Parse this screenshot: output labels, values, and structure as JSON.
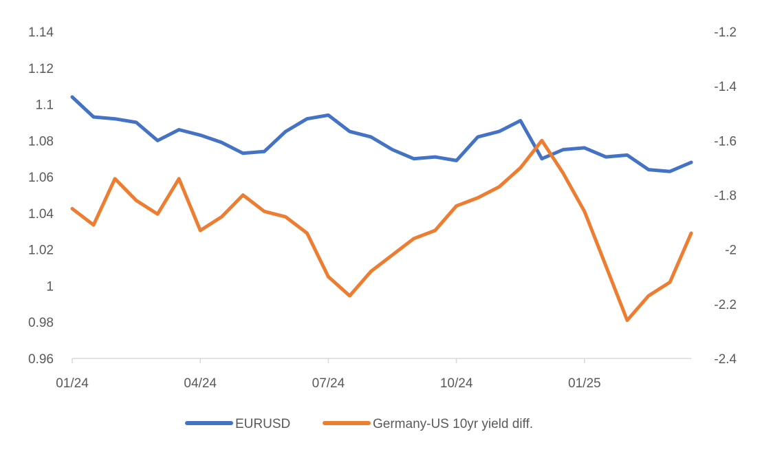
{
  "chart_data": {
    "type": "line",
    "title": "",
    "xlabel": "",
    "ylabel_left": "",
    "ylabel_right": "",
    "grid": false,
    "legend_position": "bottom",
    "x_tick_labels": [
      "01/24",
      "04/24",
      "07/24",
      "10/24",
      "01/25"
    ],
    "y_left": {
      "range": [
        0.96,
        1.14
      ],
      "ticks": [
        "0.96",
        "0.98",
        "1",
        "1.02",
        "1.04",
        "1.06",
        "1.08",
        "1.1",
        "1.12",
        "1.14"
      ]
    },
    "y_right": {
      "range": [
        -2.4,
        -1.2
      ],
      "ticks": [
        "-2.4",
        "-2.2",
        "-2",
        "-1.8",
        "-1.6",
        "-1.4",
        "-1.2"
      ]
    },
    "series": [
      {
        "name": "EURUSD",
        "axis": "left",
        "color": "#4472C4",
        "x": [
          0,
          0.5,
          1,
          1.5,
          2,
          2.5,
          3,
          3.5,
          4,
          4.5,
          5,
          5.5,
          6,
          6.5,
          7,
          7.5,
          8,
          8.5,
          9,
          9.5,
          10,
          10.5,
          11,
          11.5,
          12,
          12.5,
          13,
          13.5,
          14,
          14.5
        ],
        "values": [
          1.104,
          1.093,
          1.092,
          1.09,
          1.08,
          1.086,
          1.083,
          1.079,
          1.073,
          1.074,
          1.085,
          1.092,
          1.094,
          1.085,
          1.082,
          1.075,
          1.07,
          1.071,
          1.069,
          1.082,
          1.085,
          1.091,
          1.07,
          1.075,
          1.076,
          1.071,
          1.072,
          1.064,
          1.063,
          1.068
        ]
      },
      {
        "name": "Germany-US 10yr yield diff.",
        "axis": "right",
        "color": "#ED7D31",
        "x": [
          0,
          0.5,
          1,
          1.5,
          2,
          2.5,
          3,
          3.5,
          4,
          4.5,
          5,
          5.5,
          6,
          6.5,
          7,
          7.5,
          8,
          8.5,
          9,
          9.5,
          10,
          10.5,
          11,
          11.5,
          12,
          12.5,
          13,
          13.5,
          14,
          14.5
        ],
        "values": [
          -1.85,
          -1.91,
          -1.74,
          -1.82,
          -1.87,
          -1.74,
          -1.93,
          -1.88,
          -1.8,
          -1.86,
          -1.88,
          -1.94,
          -2.1,
          -2.17,
          -2.08,
          -2.02,
          -1.96,
          -1.93,
          -1.84,
          -1.81,
          -1.77,
          -1.7,
          -1.6,
          -1.72,
          -1.86,
          -2.06,
          -2.26,
          -2.17,
          -2.12,
          -1.94
        ]
      }
    ]
  },
  "legend": {
    "items": [
      {
        "label": "EURUSD",
        "color": "#4472C4"
      },
      {
        "label": "Germany-US 10yr yield diff.",
        "color": "#ED7D31"
      }
    ]
  }
}
